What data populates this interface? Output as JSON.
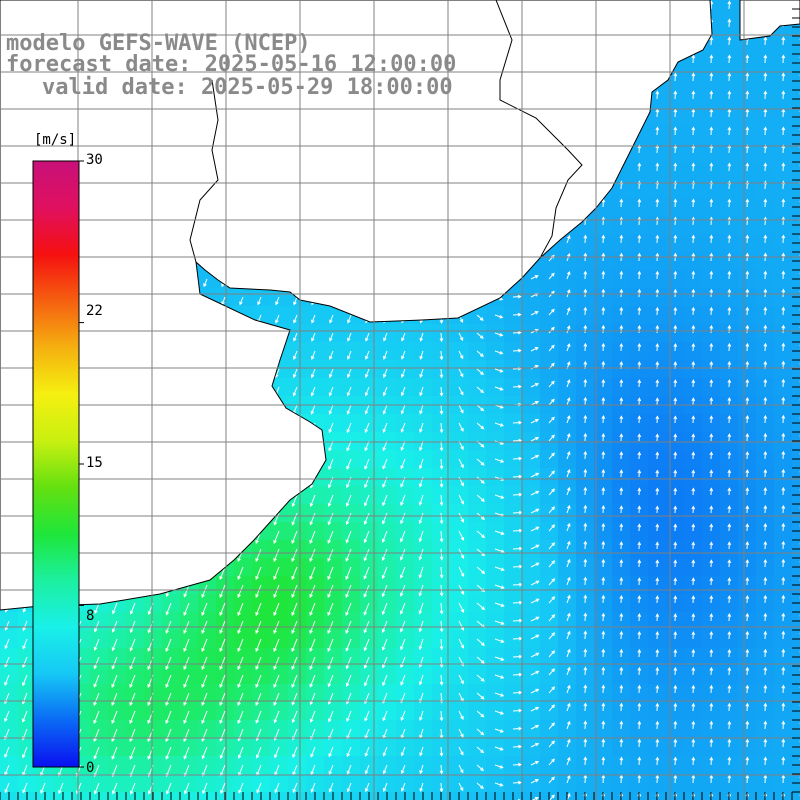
{
  "header": {
    "line1": "modelo GEFS-WAVE (NCEP)",
    "line2": "forecast date: 2025-05-16 12:00:00",
    "line3": "valid date: 2025-05-29 18:00:00"
  },
  "colorbar": {
    "unit": "[m/s]",
    "min": 0,
    "max": 30,
    "ticks": [
      "30",
      "22",
      "15",
      "8",
      "0"
    ],
    "tick_values": [
      30,
      22,
      15,
      8,
      0
    ],
    "colors": [
      "#0a10f0",
      "#0a6af5",
      "#16c8f5",
      "#19f0e8",
      "#1cf0a0",
      "#1ee63a",
      "#64e010",
      "#c8f010",
      "#f5f010",
      "#f5b010",
      "#f56010",
      "#f51010",
      "#e01060",
      "#c81078"
    ]
  },
  "map": {
    "variable": "wind speed",
    "land_color": "#ffffff",
    "grid": true,
    "grid_color": "#808080"
  }
}
